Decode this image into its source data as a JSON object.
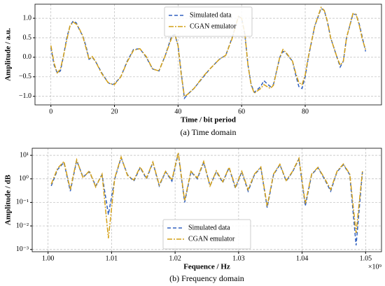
{
  "chart_data": [
    {
      "type": "line",
      "xlabel": "Time / bit period",
      "ylabel": "Amplitude / a.u.",
      "caption": "(a) Time domain",
      "x": [
        0,
        1,
        2,
        3,
        4,
        5,
        6,
        7,
        8,
        9,
        10,
        11,
        12,
        13,
        14,
        16,
        18,
        19,
        20,
        22,
        24,
        26,
        28,
        30,
        32,
        34,
        36,
        38,
        39,
        40,
        41,
        42,
        43,
        45,
        48,
        50,
        53,
        55,
        57,
        59,
        60,
        61,
        62,
        63,
        64,
        66,
        67,
        69,
        70,
        72,
        73,
        74,
        76,
        77,
        78,
        79,
        80,
        81,
        83,
        85,
        86,
        87,
        88,
        90,
        91,
        92,
        93,
        95,
        96,
        97,
        98,
        99
      ],
      "series": [
        {
          "name": "Simulated data",
          "color": "#3060c0",
          "dash": "5,3",
          "values": [
            0.25,
            -0.2,
            -0.4,
            -0.35,
            0.05,
            0.5,
            0.8,
            0.93,
            0.88,
            0.7,
            0.55,
            0.3,
            -0.05,
            0.0,
            -0.1,
            -0.4,
            -0.65,
            -0.7,
            -0.68,
            -0.5,
            -0.1,
            0.2,
            0.22,
            0.0,
            -0.3,
            -0.35,
            0.05,
            0.55,
            0.58,
            0.3,
            -0.4,
            -1.05,
            -0.95,
            -0.8,
            -0.5,
            -0.3,
            -0.05,
            0.05,
            0.5,
            1.05,
            1.0,
            0.6,
            -0.2,
            -0.7,
            -0.9,
            -0.75,
            -0.6,
            -0.75,
            -0.7,
            0.0,
            0.15,
            0.1,
            -0.1,
            -0.45,
            -0.75,
            -0.8,
            -0.5,
            0.0,
            0.8,
            1.25,
            1.2,
            0.9,
            0.5,
            0.0,
            -0.25,
            -0.1,
            0.5,
            1.1,
            1.1,
            0.85,
            0.5,
            0.15
          ]
        },
        {
          "name": "CGAN emulator",
          "color": "#d4a017",
          "dash": "7,2,2,2",
          "values": [
            0.3,
            -0.15,
            -0.4,
            -0.3,
            0.05,
            0.45,
            0.8,
            0.9,
            0.85,
            0.72,
            0.55,
            0.25,
            -0.05,
            0.02,
            -0.1,
            -0.42,
            -0.65,
            -0.68,
            -0.7,
            -0.5,
            -0.12,
            0.18,
            0.22,
            0.02,
            -0.3,
            -0.35,
            0.05,
            0.5,
            0.58,
            0.3,
            -0.45,
            -1.0,
            -0.95,
            -0.8,
            -0.48,
            -0.3,
            -0.05,
            0.05,
            0.48,
            1.05,
            1.0,
            0.62,
            -0.2,
            -0.72,
            -0.92,
            -0.8,
            -0.7,
            -0.8,
            -0.72,
            0.0,
            0.2,
            0.12,
            -0.1,
            -0.4,
            -0.65,
            -0.7,
            -0.45,
            0.02,
            0.8,
            1.28,
            1.2,
            0.92,
            0.5,
            0.0,
            -0.2,
            -0.1,
            0.5,
            1.12,
            1.1,
            0.82,
            0.45,
            0.2
          ]
        }
      ],
      "xlim": [
        -5,
        104
      ],
      "xticks": [
        0,
        20,
        40,
        60,
        80
      ],
      "ylim": [
        -1.22,
        1.36
      ],
      "yticks": [
        {
          "value": -1,
          "label": "−1.0"
        },
        {
          "value": -0.5,
          "label": "−0.5"
        },
        {
          "value": 0,
          "label": "0.0"
        },
        {
          "value": 0.5,
          "label": "0.5"
        },
        {
          "value": 1,
          "label": "1.0"
        }
      ],
      "grid": true,
      "legend": "upper center"
    },
    {
      "type": "line",
      "xlabel": "Fequence / Hz",
      "ylabel": "Amplitude / dB",
      "caption": "(b) Frequency domain",
      "x_offset_label": "×10⁹",
      "x": [
        1.0005,
        1.0015,
        1.0025,
        1.0035,
        1.0045,
        1.0055,
        1.0065,
        1.0075,
        1.0085,
        1.0095,
        1.0105,
        1.0115,
        1.0125,
        1.0135,
        1.0145,
        1.0155,
        1.0165,
        1.0175,
        1.0185,
        1.0195,
        1.0205,
        1.0215,
        1.0225,
        1.0235,
        1.0245,
        1.0255,
        1.0265,
        1.0275,
        1.0285,
        1.0295,
        1.0305,
        1.0315,
        1.0325,
        1.0335,
        1.0345,
        1.0355,
        1.0365,
        1.0375,
        1.0385,
        1.0395,
        1.0405,
        1.0415,
        1.0425,
        1.0435,
        1.0445,
        1.0455,
        1.0465,
        1.0475,
        1.0485,
        1.0495
      ],
      "series": [
        {
          "name": "Simulated data",
          "color": "#3060c0",
          "dash": "5,3",
          "values": [
            0.5,
            2.5,
            5,
            0.3,
            6,
            1.2,
            2,
            0.5,
            1.5,
            0.03,
            1,
            8,
            1.5,
            0.8,
            3,
            1,
            5,
            0.5,
            2,
            0.8,
            12,
            0.1,
            2,
            1,
            5,
            0.5,
            2,
            0.7,
            3,
            0.4,
            2,
            0.3,
            1.5,
            3,
            0.06,
            1.5,
            4,
            0.8,
            2,
            7,
            0.07,
            1.5,
            3,
            1,
            0.3,
            2,
            4,
            1.5,
            0.0015,
            2
          ]
        },
        {
          "name": "CGAN emulator",
          "color": "#d4a017",
          "dash": "7,2,2,2",
          "values": [
            0.6,
            2.8,
            5.5,
            0.35,
            6.5,
            1.1,
            2.2,
            0.45,
            1.6,
            0.003,
            1.1,
            8.5,
            1.4,
            0.9,
            3.2,
            1.1,
            5.2,
            0.55,
            2.1,
            0.9,
            13,
            0.12,
            2.1,
            1.1,
            5.5,
            0.5,
            2.2,
            0.75,
            3.1,
            0.45,
            2.1,
            0.35,
            1.6,
            3.2,
            0.07,
            1.6,
            4.2,
            0.85,
            2.1,
            7.5,
            0.09,
            1.6,
            3.1,
            1.1,
            0.35,
            2.1,
            4.3,
            1.6,
            0.005,
            2.1
          ]
        }
      ],
      "xlim": [
        0.9975,
        1.0525
      ],
      "xticks": [
        {
          "value": 1,
          "label": "1.00"
        },
        {
          "value": 1.01,
          "label": "1.01"
        },
        {
          "value": 1.02,
          "label": "1.02"
        },
        {
          "value": 1.03,
          "label": "1.03"
        },
        {
          "value": 1.04,
          "label": "1.04"
        },
        {
          "value": 1.05,
          "label": "1.05"
        }
      ],
      "ylim": [
        0.0008,
        20
      ],
      "log_y": true,
      "yticks": [
        {
          "value": 0.001,
          "label": "10⁻³"
        },
        {
          "value": 0.01,
          "label": "10⁻²"
        },
        {
          "value": 0.1,
          "label": "10⁻¹"
        },
        {
          "value": 1,
          "label": "10⁰"
        },
        {
          "value": 10,
          "label": "10¹"
        }
      ],
      "grid": true,
      "legend": "lower center"
    }
  ]
}
